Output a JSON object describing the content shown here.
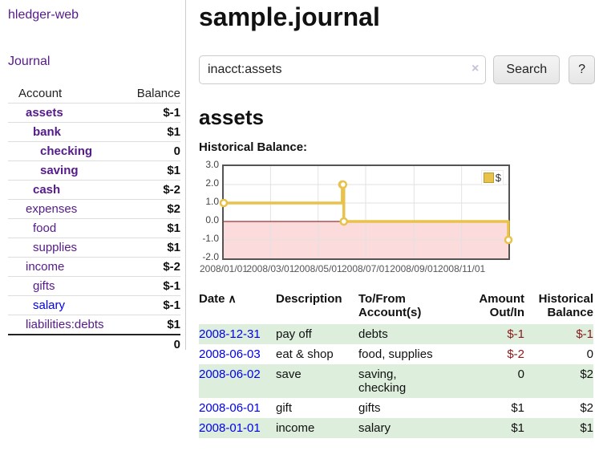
{
  "app": {
    "title": "hledger-web",
    "nav_journal": "Journal"
  },
  "sidebar": {
    "header": {
      "account": "Account",
      "balance": "Balance"
    },
    "accounts": [
      {
        "name": "assets",
        "balance": "$-1",
        "level": 1,
        "bold": true,
        "amount_class": "neg-strong"
      },
      {
        "name": "bank",
        "balance": "$1",
        "level": 2,
        "bold": true,
        "amount_class": ""
      },
      {
        "name": "checking",
        "balance": "0",
        "level": 3,
        "bold": true,
        "amount_class": ""
      },
      {
        "name": "saving",
        "balance": "$1",
        "level": 3,
        "bold": true,
        "amount_class": ""
      },
      {
        "name": "cash",
        "balance": "$-2",
        "level": 2,
        "bold": true,
        "amount_class": "neg-strong"
      },
      {
        "name": "expenses",
        "balance": "$2",
        "level": 1,
        "bold": false,
        "amount_class": ""
      },
      {
        "name": "food",
        "balance": "$1",
        "level": 2,
        "bold": false,
        "amount_class": ""
      },
      {
        "name": "supplies",
        "balance": "$1",
        "level": 2,
        "bold": false,
        "amount_class": ""
      },
      {
        "name": "income",
        "balance": "$-2",
        "level": 1,
        "bold": false,
        "amount_class": "neg-faded"
      },
      {
        "name": "gifts",
        "balance": "$-1",
        "level": 2,
        "bold": false,
        "amount_class": "neg-faded"
      },
      {
        "name": "salary",
        "balance": "$-1",
        "level": 2,
        "bold": false,
        "amount_class": "neg-faded",
        "blue": true
      },
      {
        "name": "liabilities:debts",
        "balance": "$1",
        "level": 1,
        "bold": false,
        "amount_class": ""
      }
    ],
    "total": "0"
  },
  "main": {
    "title": "sample.journal",
    "search": {
      "value": "inacct:assets",
      "clear_icon": "×",
      "search_button": "Search",
      "help_button": "?"
    },
    "account_title": "assets"
  },
  "chart_data": {
    "type": "line",
    "step": true,
    "title": "Historical Balance:",
    "legend_label": "$",
    "legend_position": "top-right",
    "grid": true,
    "xrange": [
      "2008-01-01",
      "2008-12-31"
    ],
    "ylim": [
      -2,
      3
    ],
    "series": [
      {
        "name": "$",
        "points": [
          {
            "date": "2008-01-01",
            "value": 1
          },
          {
            "date": "2008-06-01",
            "value": 2
          },
          {
            "date": "2008-06-02",
            "value": 2
          },
          {
            "date": "2008-06-03",
            "value": 0
          },
          {
            "date": "2008-12-31",
            "value": -1
          }
        ]
      }
    ],
    "yticks": [
      {
        "label": "3.0",
        "value": 3
      },
      {
        "label": "2.0",
        "value": 2
      },
      {
        "label": "1.0",
        "value": 1
      },
      {
        "label": "0.0",
        "value": 0
      },
      {
        "label": "-1.0",
        "value": -1
      },
      {
        "label": "-2.0",
        "value": -2
      }
    ],
    "xticks": [
      {
        "label": "2008/01/01",
        "date": "2008-01-01"
      },
      {
        "label": "2008/03/01",
        "date": "2008-03-01"
      },
      {
        "label": "2008/05/01",
        "date": "2008-05-01"
      },
      {
        "label": "2008/07/01",
        "date": "2008-07-01"
      },
      {
        "label": "2008/09/01",
        "date": "2008-09-01"
      },
      {
        "label": "2008/11/01",
        "date": "2008-11-01"
      }
    ],
    "colors": {
      "line": "#e8c24a",
      "marker_fill": "#ffffff",
      "negative_region": "#fbdbdb",
      "zero_line": "#8b0000",
      "gridline": "#e2e2e2",
      "plot_border": "#545454"
    }
  },
  "register": {
    "headers": {
      "date": "Date",
      "sort_indicator": "∧",
      "description": "Description",
      "tofrom_line1": "To/From",
      "tofrom_line2": "Account(s)",
      "amount_line1": "Amount",
      "amount_line2": "Out/In",
      "balance_line1": "Historical",
      "balance_line2": "Balance"
    },
    "rows": [
      {
        "date": "2008-12-31",
        "description": "pay off",
        "accounts": "debts",
        "amount": "$-1",
        "balance": "$-1"
      },
      {
        "date": "2008-06-03",
        "description": "eat & shop",
        "accounts": "food, supplies",
        "amount": "$-2",
        "balance": "0"
      },
      {
        "date": "2008-06-02",
        "description": "save",
        "accounts": "saving, checking",
        "amount": "0",
        "balance": "$2"
      },
      {
        "date": "2008-06-01",
        "description": "gift",
        "accounts": "gifts",
        "amount": "$1",
        "balance": "$2"
      },
      {
        "date": "2008-01-01",
        "description": "income",
        "accounts": "salary",
        "amount": "$1",
        "balance": "$1"
      }
    ]
  }
}
